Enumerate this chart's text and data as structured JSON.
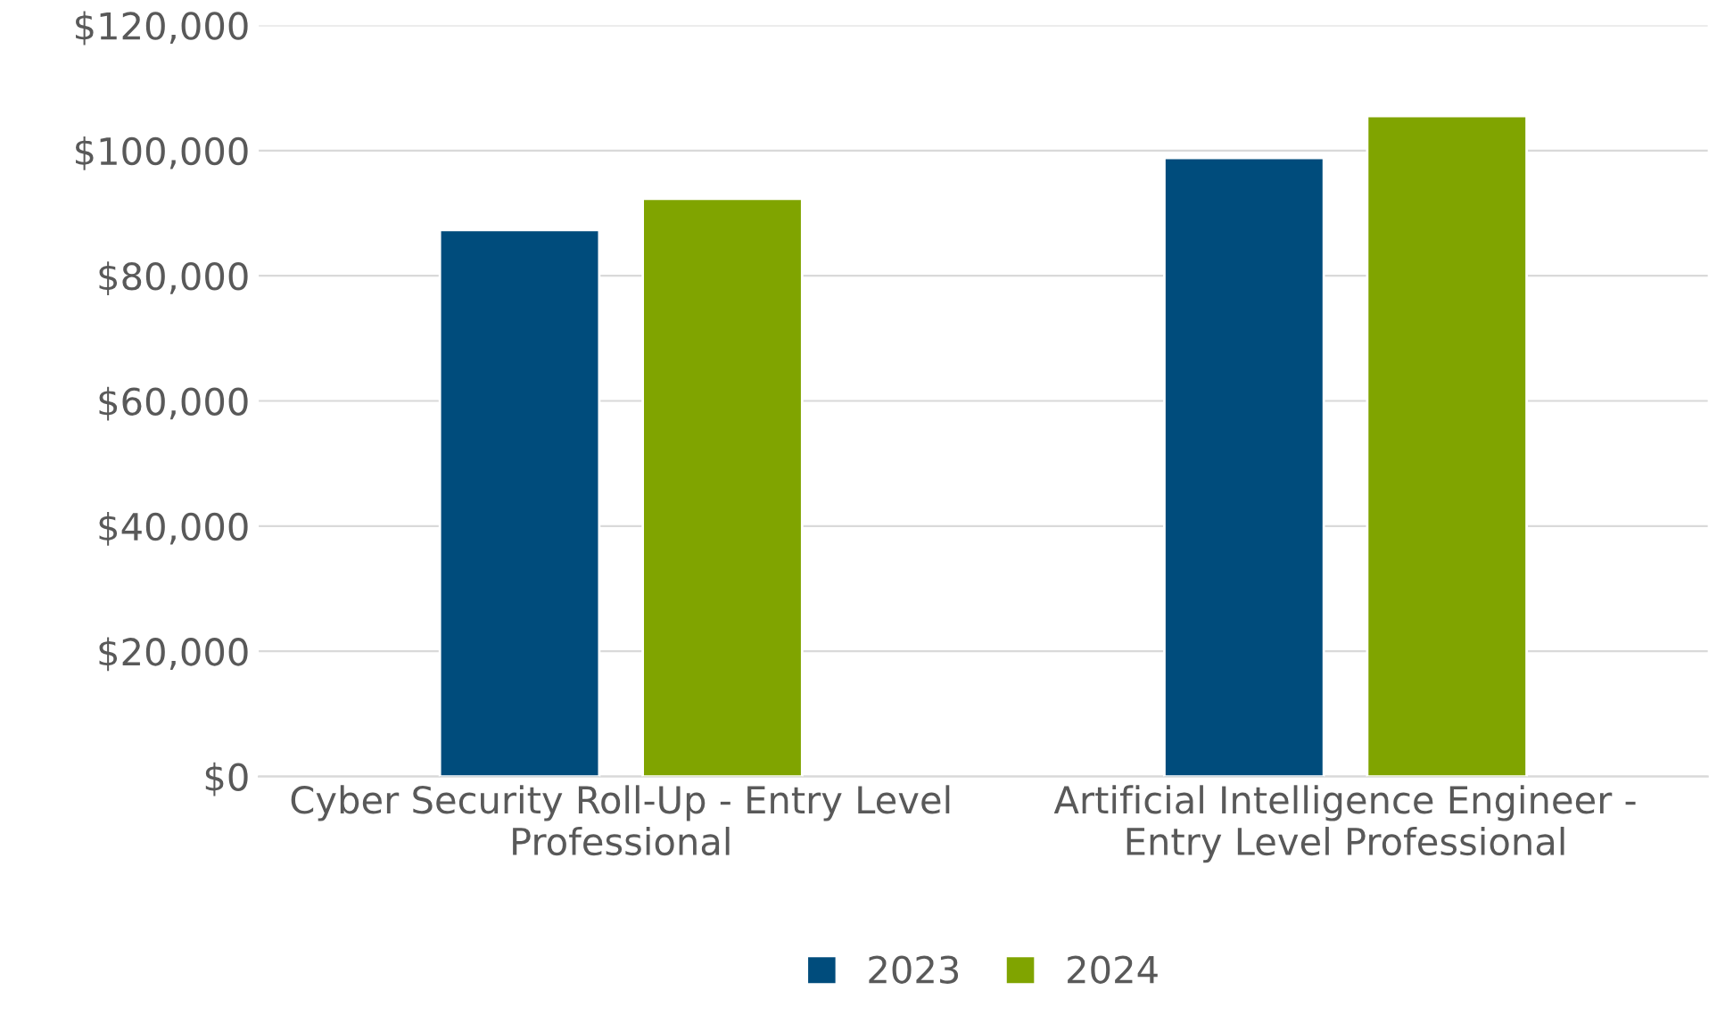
{
  "chart_data": {
    "type": "bar",
    "categories": [
      "Cyber Security Roll-Up - Entry Level\nProfessional",
      "Artificial Intelligence Engineer -\nEntry Level Professional"
    ],
    "series": [
      {
        "name": "2023",
        "color": "#004c7c",
        "values": [
          87300,
          98800
        ]
      },
      {
        "name": "2024",
        "color": "#80a400",
        "values": [
          92300,
          105500
        ]
      }
    ],
    "ylim": [
      0,
      120000
    ],
    "yticks": [
      {
        "value": 0,
        "label": "$0"
      },
      {
        "value": 20000,
        "label": "$20,000"
      },
      {
        "value": 40000,
        "label": "$40,000"
      },
      {
        "value": 60000,
        "label": "$60,000"
      },
      {
        "value": 80000,
        "label": "$80,000"
      },
      {
        "value": 100000,
        "label": "$100,000"
      },
      {
        "value": 120000,
        "label": "$120,000"
      }
    ],
    "grid": "y",
    "legend": "bottom"
  }
}
